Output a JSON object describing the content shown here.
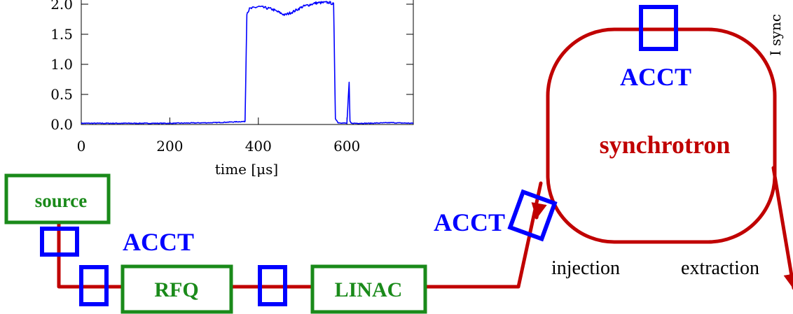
{
  "colors": {
    "beamline": "#c00000",
    "acct": "#0000ff",
    "component": "#1a8a1a",
    "signal": "#0000ff",
    "axes": "#000000"
  },
  "labels": {
    "source": "source",
    "rfq": "RFQ",
    "linac": "LINAC",
    "acct_source": "ACCT",
    "acct_injection": "ACCT",
    "acct_ring": "ACCT",
    "synchrotron": "synchrotron",
    "injection": "injection",
    "extraction": "extraction",
    "side_axis_fragment": "I sync"
  },
  "chart_data": {
    "type": "line",
    "title": "",
    "xlabel": "time [μs]",
    "ylabel": "",
    "xlim": [
      0,
      750
    ],
    "ylim": [
      0,
      2.1
    ],
    "x_ticks": [
      0,
      200,
      400,
      600
    ],
    "x_tick_labels": [
      "0",
      "200",
      "400",
      "600"
    ],
    "y_ticks": [
      0.0,
      0.5,
      1.0,
      1.5,
      2.0
    ],
    "y_tick_labels": [
      "0.0",
      "0.5",
      "1.0",
      "1.5",
      "2.0"
    ],
    "grid": false,
    "series": [
      {
        "x": [
          0,
          100,
          200,
          300,
          370,
          374,
          380,
          400,
          430,
          460,
          480,
          500,
          530,
          560,
          570,
          574,
          580,
          600,
          605,
          607,
          610,
          650,
          700,
          750
        ],
        "y": [
          0.02,
          0.02,
          0.02,
          0.03,
          0.05,
          1.85,
          1.92,
          1.96,
          1.92,
          1.82,
          1.88,
          1.96,
          2.02,
          2.03,
          2.0,
          0.1,
          0.03,
          0.02,
          0.7,
          0.05,
          0.02,
          0.02,
          0.03,
          0.02
        ]
      }
    ]
  }
}
